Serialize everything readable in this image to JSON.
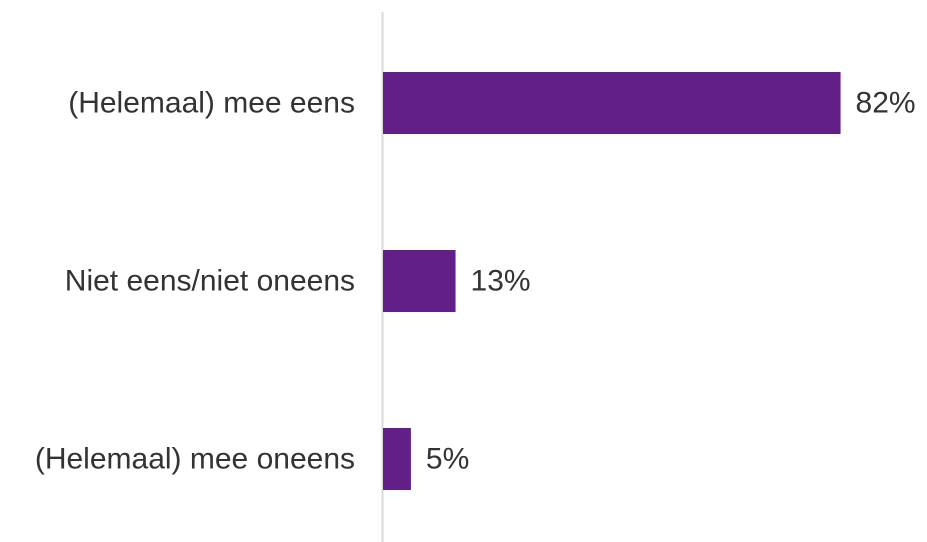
{
  "chart_data": {
    "type": "bar",
    "orientation": "horizontal",
    "categories": [
      "(Helemaal) mee eens",
      "Niet eens/niet oneens",
      "(Helemaal) mee oneens"
    ],
    "values": [
      82,
      13,
      5
    ],
    "value_labels": [
      "82%",
      "13%",
      "5%"
    ],
    "unit": "%",
    "xlim": [
      0,
      100
    ],
    "title": "",
    "xlabel": "",
    "ylabel": "",
    "grid": false,
    "legend": "none",
    "colors": {
      "bar": "#621f87",
      "axis": "#d9d9d9",
      "text": "#333333"
    }
  }
}
